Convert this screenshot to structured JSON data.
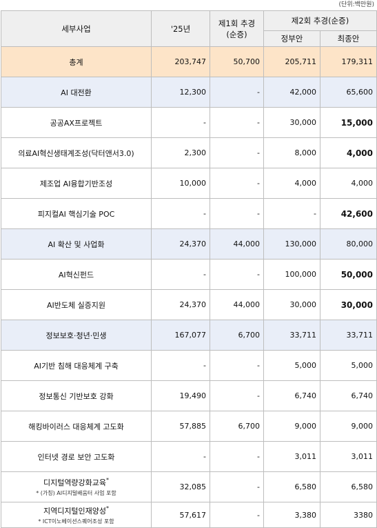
{
  "unit_note": "(단위:백만원)",
  "headers": {
    "name": "세부사업",
    "y25": "'25년",
    "supp1_line1": "제1회 추경",
    "supp1_line2": "(순증)",
    "supp2": "제2회 추경(순증)",
    "gov": "정부안",
    "final": "최종안"
  },
  "rows": [
    {
      "name": "총계",
      "y25": "203,747",
      "s1": "50,700",
      "gov": "205,711",
      "final": "179,311",
      "type": "total",
      "final_bold": false
    },
    {
      "name": "AI 대전환",
      "y25": "12,300",
      "s1": "-",
      "gov": "42,000",
      "final": "65,600",
      "type": "cat",
      "final_bold": false
    },
    {
      "name": "공공AX프로젝트",
      "y25": "-",
      "s1": "-",
      "gov": "30,000",
      "final": "15,000",
      "type": "item",
      "final_bold": true
    },
    {
      "name": "의료AI혁신생태계조성(닥터앤서3.0)",
      "y25": "2,300",
      "s1": "-",
      "gov": "8,000",
      "final": "4,000",
      "type": "item",
      "final_bold": true
    },
    {
      "name": "제조업 AI융합기반조성",
      "y25": "10,000",
      "s1": "-",
      "gov": "4,000",
      "final": "4,000",
      "type": "item",
      "final_bold": false
    },
    {
      "name": "피지컬AI 핵심기술 POC",
      "y25": "-",
      "s1": "-",
      "gov": "-",
      "final": "42,600",
      "type": "item",
      "final_bold": true
    },
    {
      "name": "AI 확산 및 사업화",
      "y25": "24,370",
      "s1": "44,000",
      "gov": "130,000",
      "final": "80,000",
      "type": "cat",
      "final_bold": false
    },
    {
      "name": "AI혁신펀드",
      "y25": "-",
      "s1": "-",
      "gov": "100,000",
      "final": "50,000",
      "type": "item",
      "final_bold": true
    },
    {
      "name": "AI반도체 실증지원",
      "y25": "24,370",
      "s1": "44,000",
      "gov": "30,000",
      "final": "30,000",
      "type": "item",
      "final_bold": true
    },
    {
      "name": "정보보호·청년·민생",
      "y25": "167,077",
      "s1": "6,700",
      "gov": "33,711",
      "final": "33,711",
      "type": "cat",
      "final_bold": false
    },
    {
      "name": "AI기반 침해 대응체계 구축",
      "y25": "-",
      "s1": "-",
      "gov": "5,000",
      "final": "5,000",
      "type": "item",
      "final_bold": false
    },
    {
      "name": "정보통신 기반보호 강화",
      "y25": "19,490",
      "s1": "-",
      "gov": "6,740",
      "final": "6,740",
      "type": "item",
      "final_bold": false
    },
    {
      "name": "해킹바이러스 대응체계 고도화",
      "y25": "57,885",
      "s1": "6,700",
      "gov": "9,000",
      "final": "9,000",
      "type": "item",
      "final_bold": false
    },
    {
      "name": "인터넷 경로 보안 고도화",
      "y25": "-",
      "s1": "-",
      "gov": "3,011",
      "final": "3,011",
      "type": "item",
      "final_bold": false
    },
    {
      "name": "디지털역량강화교육",
      "note": "* (가칭) AI디지털배움터 사업 포함",
      "sup": "*",
      "y25": "32,085",
      "s1": "-",
      "gov": "6,580",
      "final": "6,580",
      "type": "item",
      "final_bold": false
    },
    {
      "name": "지역디지털인재양성",
      "note": "* ICT이노베이션스퀘어조성 포함",
      "sup": "*",
      "y25": "57,617",
      "s1": "-",
      "gov": "3,380",
      "final": "3380",
      "type": "item",
      "final_bold": false
    }
  ]
}
